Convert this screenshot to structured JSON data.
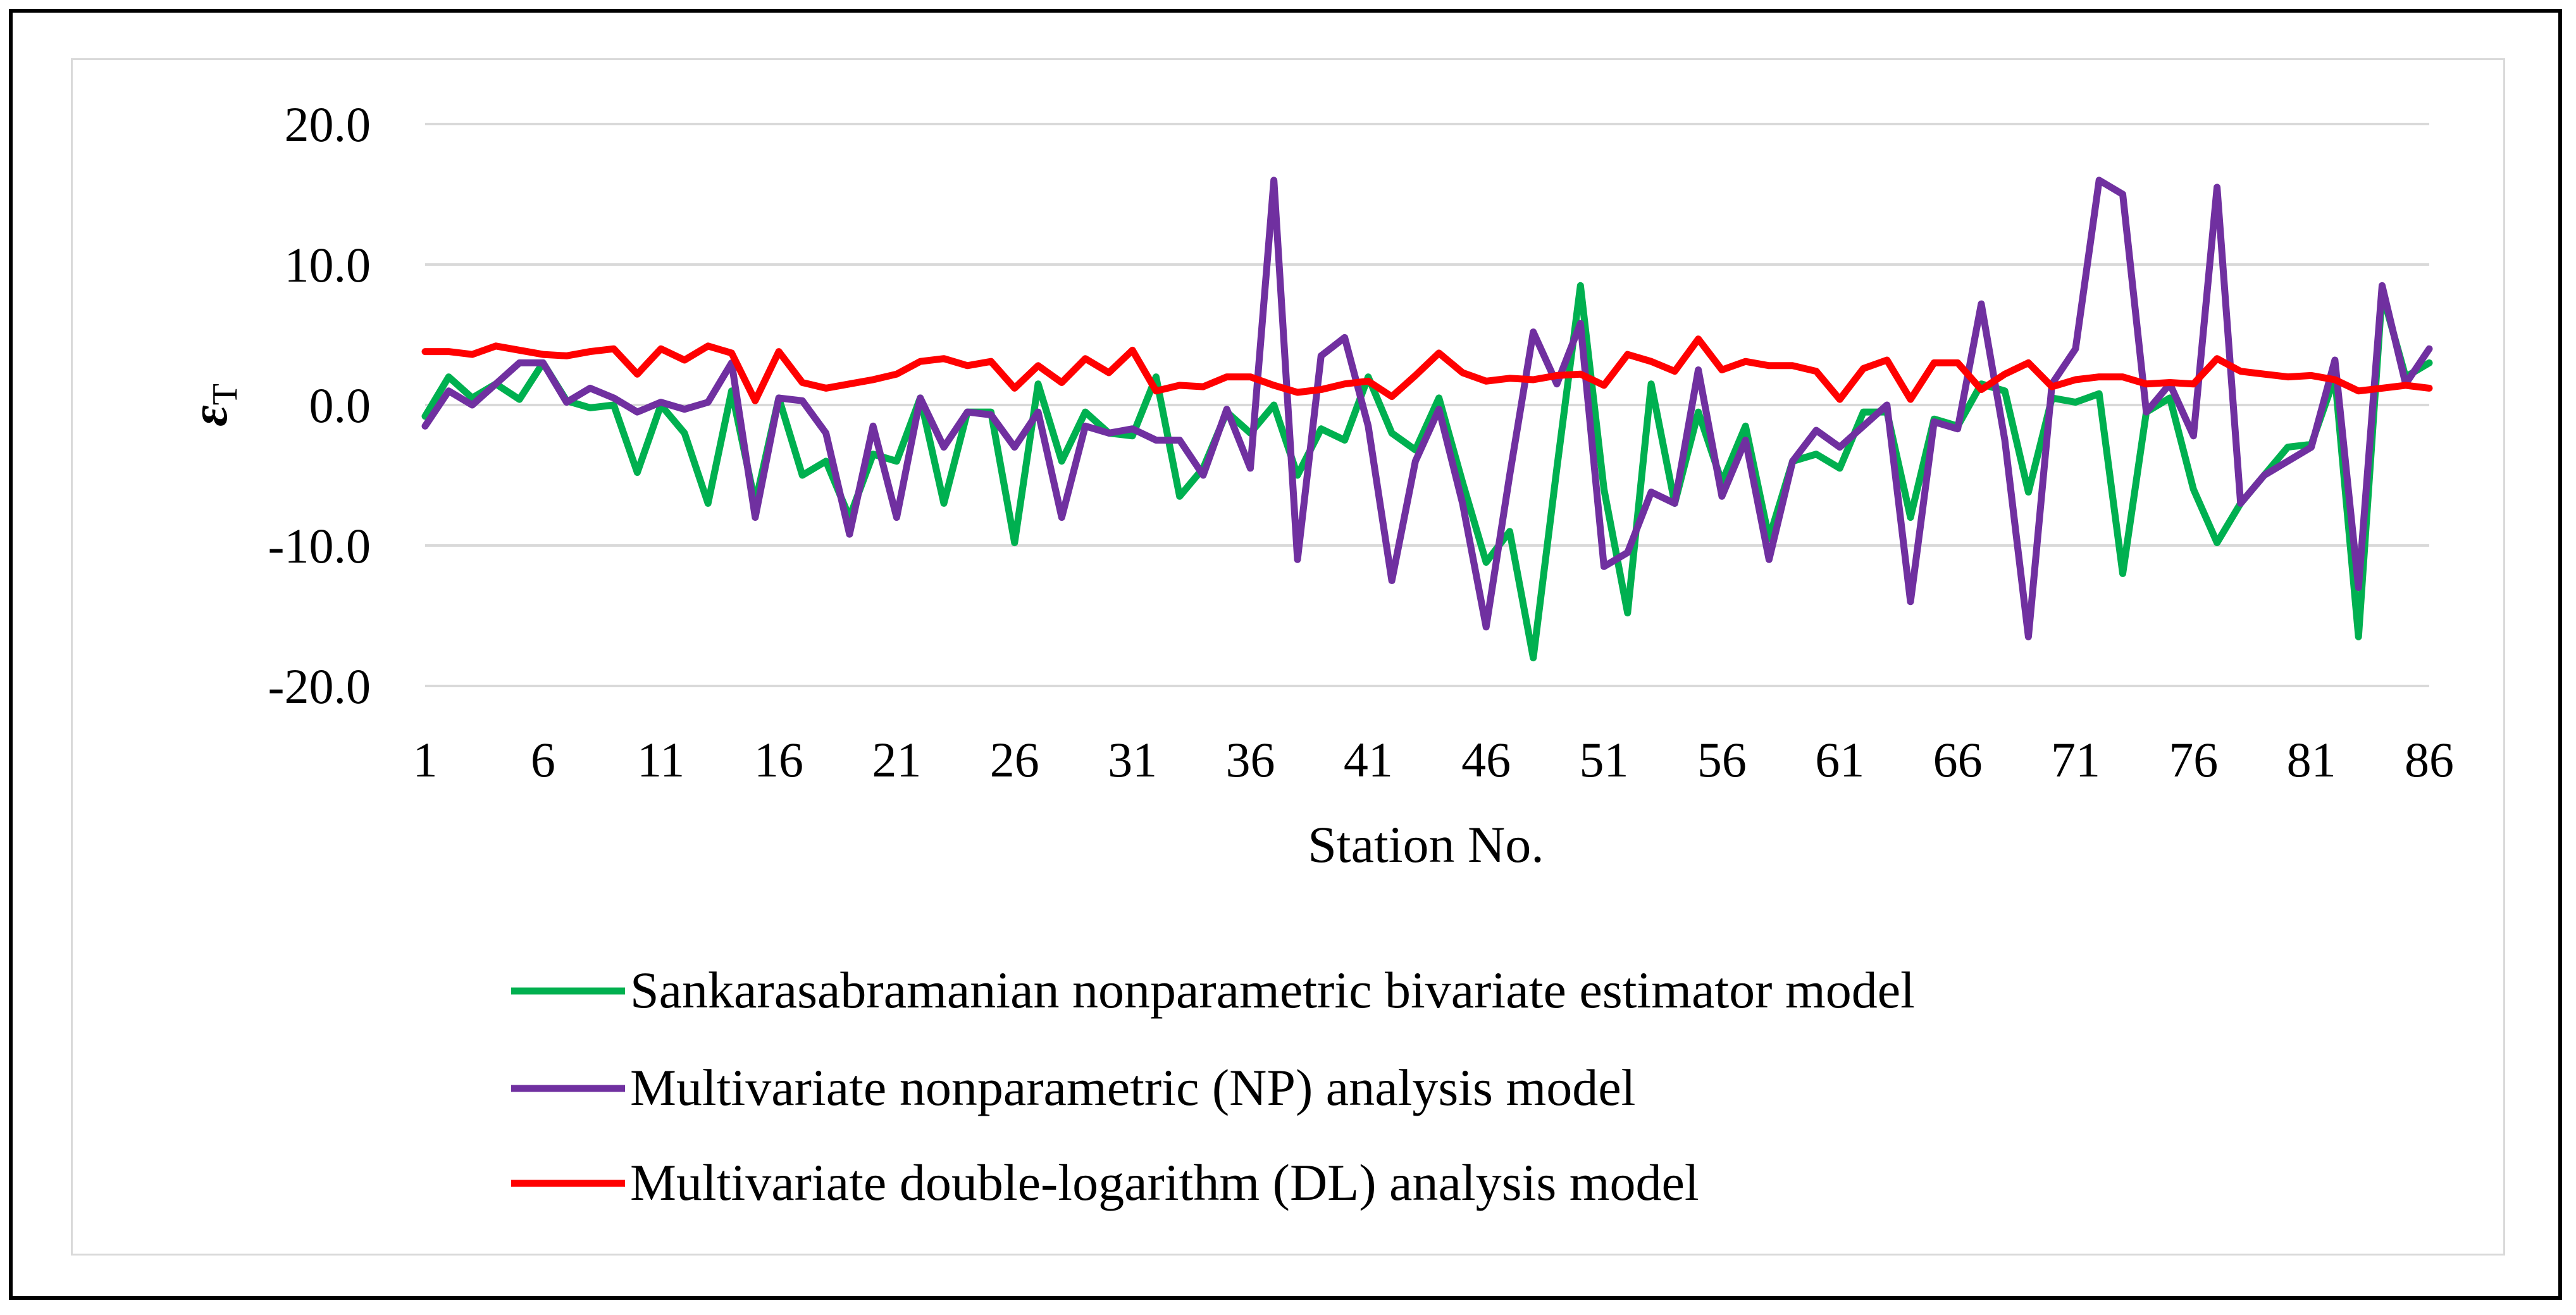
{
  "chart_data": {
    "type": "line",
    "title": "",
    "xlabel": "Station No.",
    "ylabel": "ε",
    "ylabel_subscript": "T",
    "ylim": [
      -20,
      20
    ],
    "ytick_values": [
      20,
      10,
      0,
      -10,
      -20
    ],
    "ytick_labels": [
      "20.0",
      "10.0",
      "0.0",
      "-10.0",
      "-20.0"
    ],
    "xlim": [
      1,
      86
    ],
    "xtick_values": [
      1,
      6,
      11,
      16,
      21,
      26,
      31,
      36,
      41,
      46,
      51,
      56,
      61,
      66,
      71,
      76,
      81,
      86
    ],
    "grid": true,
    "legend_position": "bottom",
    "x": [
      1,
      2,
      3,
      4,
      5,
      6,
      7,
      8,
      9,
      10,
      11,
      12,
      13,
      14,
      15,
      16,
      17,
      18,
      19,
      20,
      21,
      22,
      23,
      24,
      25,
      26,
      27,
      28,
      29,
      30,
      31,
      32,
      33,
      34,
      35,
      36,
      37,
      38,
      39,
      40,
      41,
      42,
      43,
      44,
      45,
      46,
      47,
      48,
      49,
      50,
      51,
      52,
      53,
      54,
      55,
      56,
      57,
      58,
      59,
      60,
      61,
      62,
      63,
      64,
      65,
      66,
      67,
      68,
      69,
      70,
      71,
      72,
      73,
      74,
      75,
      76,
      77,
      78,
      79,
      80,
      81,
      82,
      83,
      84,
      85,
      86
    ],
    "series": [
      {
        "name": "Sankarasabramanian nonparametric bivariate estimator model",
        "color": "#00b050",
        "values": [
          -0.8,
          2.0,
          0.5,
          1.5,
          0.4,
          3.0,
          0.3,
          -0.2,
          0.0,
          -4.8,
          0.0,
          -2.0,
          -7.0,
          1.0,
          -7.0,
          0.5,
          -5.0,
          -4.0,
          -8.0,
          -3.5,
          -4.0,
          0.5,
          -7.0,
          -0.5,
          -0.5,
          -9.8,
          1.5,
          -4.0,
          -0.5,
          -2.0,
          -2.2,
          2.0,
          -6.5,
          -4.5,
          -0.5,
          -2.0,
          0.0,
          -5.0,
          -1.7,
          -2.5,
          2.0,
          -2.0,
          -3.2,
          0.5,
          -5.5,
          -11.2,
          -9.0,
          -18.0,
          -4.5,
          8.5,
          -6.0,
          -14.8,
          1.5,
          -7.0,
          -0.5,
          -5.5,
          -1.5,
          -9.5,
          -4.0,
          -3.5,
          -4.5,
          -0.5,
          -0.5,
          -8.0,
          -1.0,
          -1.5,
          1.5,
          1.0,
          -6.2,
          0.5,
          0.2,
          0.8,
          -12.0,
          -0.5,
          0.5,
          -6.0,
          -9.8,
          -7.0,
          -5.0,
          -3.0,
          -2.8,
          2.0,
          -16.5,
          8.0,
          2.0,
          3.0
        ]
      },
      {
        "name": "Multivariate nonparametric (NP) analysis model",
        "color": "#7030a0",
        "values": [
          -1.5,
          1.0,
          0.0,
          1.5,
          3.0,
          3.0,
          0.2,
          1.2,
          0.5,
          -0.5,
          0.2,
          -0.3,
          0.2,
          3.0,
          -8.0,
          0.5,
          0.3,
          -2.0,
          -9.2,
          -1.5,
          -8.0,
          0.5,
          -3.0,
          -0.5,
          -0.7,
          -3.0,
          -0.5,
          -8.0,
          -1.5,
          -2.0,
          -1.7,
          -2.5,
          -2.5,
          -5.0,
          -0.3,
          -4.5,
          16.0,
          -11.0,
          3.5,
          4.8,
          -1.5,
          -12.5,
          -4.0,
          -0.3,
          -7.0,
          -15.8,
          -5.0,
          5.2,
          1.5,
          5.8,
          -11.5,
          -10.5,
          -6.2,
          -7.0,
          2.5,
          -6.5,
          -2.5,
          -11.0,
          -4.0,
          -1.8,
          -3.0,
          -1.5,
          0.0,
          -14.0,
          -1.2,
          -1.7,
          7.2,
          -2.5,
          -16.5,
          1.5,
          4.0,
          16.0,
          15.0,
          -0.5,
          1.5,
          -2.2,
          15.5,
          -7.0,
          -5.0,
          -4.0,
          -3.0,
          3.2,
          -13.0,
          8.5,
          1.5,
          4.0
        ]
      },
      {
        "name": "Multivariate double-logarithm (DL) analysis model",
        "color": "#ff0000",
        "values": [
          3.8,
          3.8,
          3.6,
          4.2,
          3.9,
          3.6,
          3.5,
          3.8,
          4.0,
          2.2,
          4.0,
          3.2,
          4.2,
          3.7,
          0.3,
          3.8,
          1.6,
          1.2,
          1.5,
          1.8,
          2.2,
          3.1,
          3.3,
          2.8,
          3.1,
          1.2,
          2.8,
          1.6,
          3.3,
          2.3,
          3.9,
          1.0,
          1.4,
          1.3,
          2.0,
          2.0,
          1.4,
          0.9,
          1.1,
          1.5,
          1.7,
          0.6,
          2.1,
          3.7,
          2.3,
          1.7,
          1.9,
          1.8,
          2.1,
          2.2,
          1.4,
          3.6,
          3.1,
          2.4,
          4.7,
          2.5,
          3.1,
          2.8,
          2.8,
          2.4,
          0.4,
          2.6,
          3.2,
          0.4,
          3.0,
          3.0,
          1.1,
          2.2,
          3.0,
          1.3,
          1.8,
          2.0,
          2.0,
          1.5,
          1.6,
          1.5,
          3.3,
          2.4,
          2.2,
          2.0,
          2.1,
          1.8,
          1.0,
          1.2,
          1.4,
          1.2
        ]
      }
    ]
  }
}
